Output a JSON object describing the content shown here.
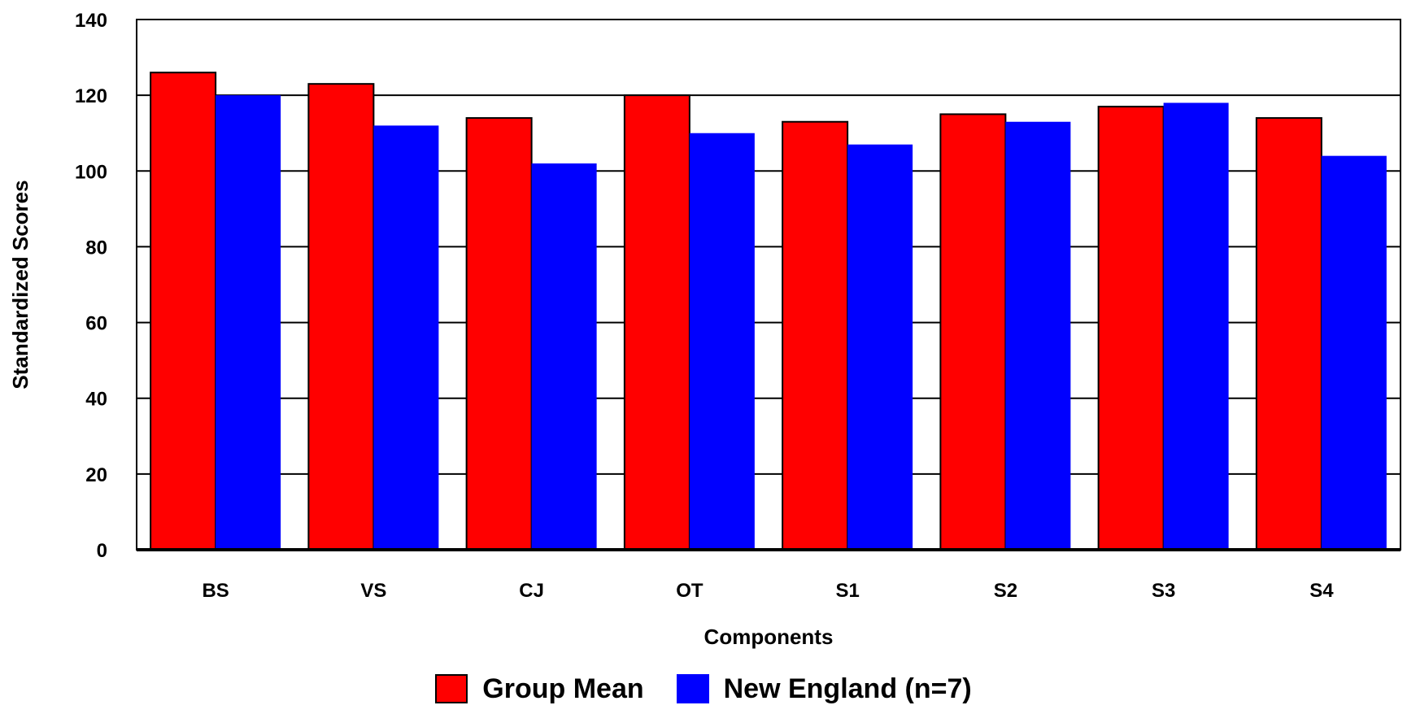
{
  "chart_data": {
    "type": "bar",
    "categories": [
      "BS",
      "VS",
      "CJ",
      "OT",
      "S1",
      "S2",
      "S3",
      "S4"
    ],
    "series": [
      {
        "name": "Group Mean",
        "color": "#ff0000",
        "values": [
          126,
          123,
          114,
          120,
          113,
          115,
          117,
          114
        ]
      },
      {
        "name": "New England (n=7)",
        "color": "#0000ff",
        "values": [
          120,
          112,
          102,
          110,
          107,
          113,
          118,
          104
        ]
      }
    ],
    "xlabel": "Components",
    "ylabel": "Standardized Scores",
    "ylim": [
      0,
      140
    ],
    "yticks": [
      "0",
      "20",
      "40",
      "60",
      "80",
      "100",
      "120",
      "140"
    ],
    "grid": true,
    "legend_position": "bottom"
  }
}
